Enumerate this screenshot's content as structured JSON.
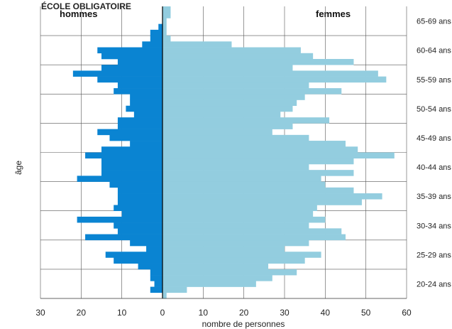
{
  "chart_data": {
    "type": "bar",
    "subtype": "population-pyramid",
    "title": "ÉCOLE OBLIGATOIRE",
    "xlabel": "nombre de personnes",
    "ylabel": "âge",
    "left_header": "hommes",
    "right_header": "femmes",
    "x_ticks": [
      "30",
      "20",
      "10",
      "0",
      "10",
      "20",
      "30",
      "40",
      "50",
      "60"
    ],
    "x_range_left": [
      0,
      30
    ],
    "x_range_right": [
      0,
      60
    ],
    "age_min": 20,
    "age_max": 69,
    "age_labels": [
      "20-24 ans",
      "25-29 ans",
      "30-34 ans",
      "35-39 ans",
      "40-44 ans",
      "45-49 ans",
      "50-54 ans",
      "55-59 ans",
      "60-64 ans",
      "65-69 ans"
    ],
    "grid": true,
    "colors": {
      "hommes": "#0a84d2",
      "femmes": "#93cddf",
      "grid": "#555555",
      "center": "#000000"
    },
    "series": [
      {
        "name": "hommes",
        "ages": [
          20,
          21,
          22,
          23,
          24,
          25,
          26,
          27,
          28,
          29,
          30,
          31,
          32,
          33,
          34,
          35,
          36,
          37,
          38,
          39,
          40,
          41,
          42,
          43,
          44,
          45,
          46,
          47,
          48,
          49,
          50,
          51,
          52,
          53,
          54,
          55,
          56,
          57,
          58,
          59,
          60,
          61,
          62,
          63,
          64,
          65,
          66,
          67,
          68,
          69
        ],
        "values": [
          0,
          3,
          2,
          3,
          3,
          6,
          12,
          14,
          4,
          8,
          19,
          11,
          12,
          21,
          10,
          12,
          11,
          11,
          11,
          13,
          21,
          15,
          15,
          15,
          19,
          15,
          8,
          13,
          16,
          11,
          11,
          7,
          9,
          8,
          8,
          12,
          11,
          16,
          22,
          15,
          11,
          15,
          16,
          5,
          3,
          3,
          1,
          0,
          0,
          0
        ]
      },
      {
        "name": "femmes",
        "ages": [
          20,
          21,
          22,
          23,
          24,
          25,
          26,
          27,
          28,
          29,
          30,
          31,
          32,
          33,
          34,
          35,
          36,
          37,
          38,
          39,
          40,
          41,
          42,
          43,
          44,
          45,
          46,
          47,
          48,
          49,
          50,
          51,
          52,
          53,
          54,
          55,
          56,
          57,
          58,
          59,
          60,
          61,
          62,
          63,
          64,
          65,
          66,
          67,
          68,
          69
        ],
        "values": [
          1,
          6,
          23,
          27,
          33,
          26,
          35,
          39,
          30,
          36,
          45,
          44,
          36,
          40,
          37,
          38,
          49,
          54,
          47,
          40,
          39,
          47,
          36,
          47,
          57,
          48,
          45,
          36,
          27,
          32,
          41,
          29,
          32,
          33,
          35,
          44,
          36,
          55,
          53,
          32,
          47,
          37,
          34,
          17,
          2,
          1,
          1,
          1,
          2,
          2
        ]
      }
    ]
  }
}
